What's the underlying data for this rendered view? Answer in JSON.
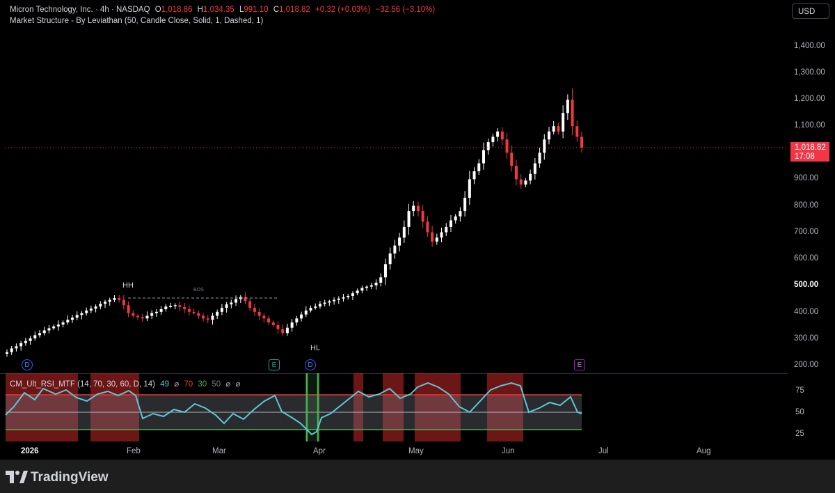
{
  "header": {
    "symbol": "Micron Technology, Inc. · 4h · NASDAQ",
    "open_label": "O",
    "open": "1,018.86",
    "high_label": "H",
    "high": "1,034.35",
    "low_label": "L",
    "low": "991.10",
    "close_label": "C",
    "close": "1,018.82",
    "change": "+0.32 (+0.03%)",
    "change2": "−32.56 (−3.10%)",
    "indicator": "Market Structure - By Leviathan (50, Candle Close, Solid, 1, Dashed, 1)"
  },
  "currency": "USD",
  "price_badge": {
    "price": "1,018.82",
    "countdown": "17:08"
  },
  "y_axis_labels": [
    "1,400.00",
    "1,300.00",
    "1,200.00",
    "1,100.00",
    "900.00",
    "800.00",
    "700.00",
    "600.00",
    "500.00",
    "400.00",
    "300.00",
    "200.00"
  ],
  "y_axis_bold": "500.00",
  "x_axis_labels": [
    "2026",
    "Feb",
    "Mar",
    "Apr",
    "May",
    "Jun",
    "Jul",
    "Aug"
  ],
  "annotations": {
    "hh": "HH",
    "hl": "HL",
    "bos": "BOS"
  },
  "events": {
    "dividend": "D",
    "earnings": "E"
  },
  "rsi": {
    "title": "CM_Ult_RSI_MTF (14, 70, 30, 60, D, 14)",
    "value": "49",
    "sym1": "⌀",
    "upper": "70",
    "lower": "30",
    "mid": "50",
    "sym2": "⌀",
    "sym3": "⌀",
    "axis_labels": [
      "75",
      "50",
      "25"
    ],
    "colors": {
      "line": "#5ec8d6",
      "upper": "#e53935",
      "lower": "#4caf50",
      "overbought_bg": "#c62828"
    }
  },
  "brand": "TradingView",
  "chart_data": {
    "type": "candlestick",
    "title": "Micron Technology, Inc. · 4h · NASDAQ",
    "ylim": [
      200,
      1450
    ],
    "colors": {
      "up": "#ffffff",
      "down": "#f23645"
    },
    "closes": [
      248,
      262,
      270,
      282,
      290,
      300,
      312,
      320,
      330,
      338,
      345,
      352,
      360,
      370,
      378,
      388,
      395,
      405,
      412,
      420,
      430,
      438,
      445,
      452,
      445,
      425,
      395,
      385,
      380,
      375,
      385,
      395,
      400,
      410,
      420,
      422,
      425,
      418,
      410,
      400,
      395,
      385,
      375,
      370,
      385,
      400,
      415,
      428,
      435,
      448,
      456,
      440,
      415,
      400,
      385,
      375,
      360,
      350,
      335,
      320,
      340,
      360,
      375,
      390,
      405,
      415,
      420,
      430,
      435,
      440,
      445,
      450,
      455,
      460,
      470,
      480,
      490,
      495,
      500,
      510,
      530,
      580,
      620,
      650,
      680,
      720,
      780,
      800,
      780,
      740,
      700,
      665,
      680,
      700,
      720,
      745,
      760,
      780,
      830,
      900,
      930,
      960,
      1010,
      1040,
      1060,
      1080,
      1050,
      1000,
      950,
      900,
      880,
      895,
      920,
      960,
      1000,
      1050,
      1080,
      1100,
      1080,
      1150,
      1200,
      1100,
      1060,
      1018.82
    ]
  }
}
